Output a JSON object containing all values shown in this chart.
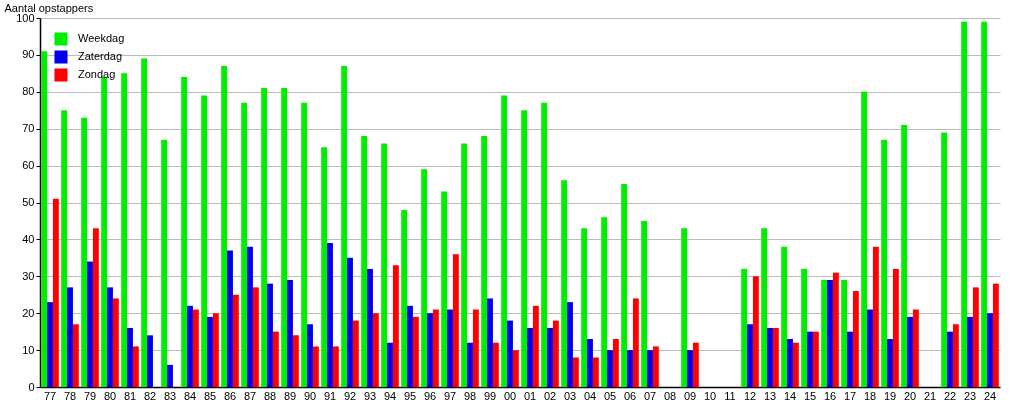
{
  "chart_data": {
    "type": "bar",
    "ylabel": "Aantal opstappers",
    "categories": [
      "77",
      "78",
      "79",
      "80",
      "81",
      "82",
      "83",
      "84",
      "85",
      "86",
      "87",
      "88",
      "89",
      "90",
      "91",
      "92",
      "93",
      "94",
      "95",
      "96",
      "97",
      "98",
      "99",
      "00",
      "01",
      "02",
      "03",
      "04",
      "05",
      "06",
      "07",
      "08",
      "09",
      "10",
      "11",
      "12",
      "13",
      "14",
      "15",
      "16",
      "17",
      "18",
      "19",
      "20",
      "21",
      "22",
      "23",
      "24"
    ],
    "series": [
      {
        "name": "Weekdag",
        "color": "#00ee00",
        "values": [
          91,
          75,
          73,
          84,
          85,
          89,
          67,
          84,
          79,
          87,
          77,
          81,
          81,
          77,
          65,
          87,
          68,
          66,
          48,
          59,
          53,
          66,
          68,
          79,
          75,
          77,
          56,
          43,
          46,
          55,
          45,
          null,
          43,
          null,
          null,
          32,
          43,
          38,
          32,
          29,
          29,
          80,
          67,
          71,
          null,
          69,
          99,
          99
        ]
      },
      {
        "name": "Zaterdag",
        "color": "#0000ee",
        "values": [
          23,
          27,
          34,
          27,
          16,
          14,
          6,
          22,
          19,
          37,
          38,
          28,
          29,
          17,
          39,
          35,
          32,
          12,
          22,
          20,
          21,
          12,
          24,
          18,
          16,
          16,
          23,
          13,
          10,
          10,
          10,
          null,
          10,
          null,
          null,
          17,
          16,
          13,
          15,
          29,
          15,
          21,
          13,
          19,
          null,
          15,
          19,
          20
        ]
      },
      {
        "name": "Zondag",
        "color": "#ff0000",
        "values": [
          51,
          17,
          43,
          24,
          11,
          null,
          null,
          21,
          20,
          25,
          27,
          15,
          14,
          11,
          11,
          18,
          20,
          33,
          19,
          21,
          36,
          21,
          12,
          10,
          22,
          18,
          8,
          8,
          13,
          24,
          11,
          null,
          12,
          null,
          null,
          30,
          16,
          12,
          15,
          31,
          26,
          38,
          32,
          21,
          null,
          17,
          27,
          28
        ]
      }
    ],
    "ylim": [
      0,
      100
    ],
    "yticks": [
      0,
      10,
      20,
      30,
      40,
      50,
      60,
      70,
      80,
      90,
      100
    ],
    "grid": "y",
    "legend": "top left"
  }
}
